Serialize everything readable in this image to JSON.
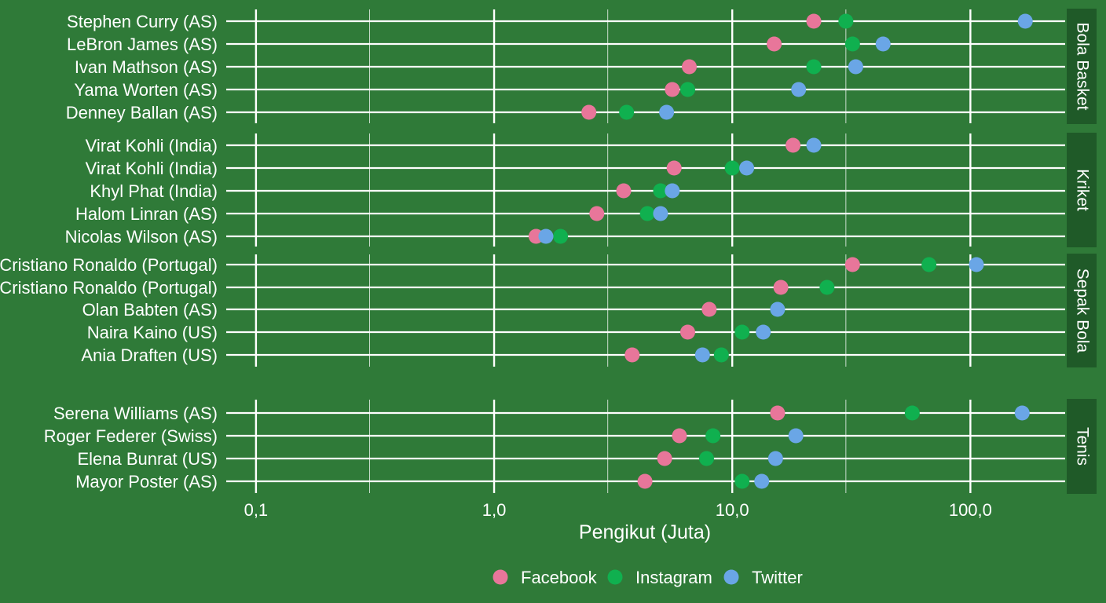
{
  "chart_data": {
    "type": "scatter",
    "x_scale": "log",
    "xlim": [
      0.075,
      250
    ],
    "xlabel": "Pengikut (Juta)",
    "xticks": [
      {
        "value": 0.1,
        "label": "0,1"
      },
      {
        "value": 1,
        "label": "1,0"
      },
      {
        "value": 10,
        "label": "10,0"
      },
      {
        "value": 100,
        "label": "100,0"
      }
    ],
    "minor_grid": [
      0.3,
      3,
      30
    ],
    "grid": true,
    "legend_position": "bottom",
    "series": [
      {
        "key": "fb",
        "name": "Facebook",
        "color": "#e8769a"
      },
      {
        "key": "ig",
        "name": "Instagram",
        "color": "#10b04f"
      },
      {
        "key": "tw",
        "name": "Twitter",
        "color": "#6aa6e6"
      }
    ],
    "panels": [
      {
        "name": "Bola Basket",
        "rows": [
          {
            "label": "Stephen Curry (AS)",
            "fb": 22,
            "ig": 30,
            "tw": 170
          },
          {
            "label": "LeBron James (AS)",
            "fb": 15,
            "ig": 32,
            "tw": 43
          },
          {
            "label": "Ivan Mathson (AS)",
            "fb": 6.6,
            "ig": 22,
            "tw": 33
          },
          {
            "label": "Yama Worten (AS)",
            "fb": 5.6,
            "ig": 6.5,
            "tw": 19
          },
          {
            "label": "Denney Ballan (AS)",
            "fb": 2.5,
            "ig": 3.6,
            "tw": 5.3
          }
        ]
      },
      {
        "name": "Kriket",
        "rows": [
          {
            "label": "Virat Kohli (India)",
            "fb": 18,
            "ig": null,
            "tw": 22
          },
          {
            "label": "Virat  Kohli (India)",
            "fb": 5.7,
            "ig": 10,
            "tw": 11.5
          },
          {
            "label": "Khyl Phat (India)",
            "fb": 3.5,
            "ig": 5,
            "tw": 5.6
          },
          {
            "label": "Halom Linran (AS)",
            "fb": 2.7,
            "ig": 4.4,
            "tw": 5
          },
          {
            "label": "Nicolas Wilson (AS)",
            "fb": 1.5,
            "ig": 1.9,
            "tw": 1.65
          }
        ]
      },
      {
        "name": "Sepak Bola",
        "rows": [
          {
            "label": "Cristiano Ronaldo (Portugal)",
            "fb": 32,
            "ig": 67,
            "tw": 106
          },
          {
            "label": "Cristiano Ronaldo (Portugal)",
            "fb": 16,
            "ig": 25,
            "tw": null
          },
          {
            "label": "Olan Babten (AS)",
            "fb": 8,
            "ig": 15.5,
            "tw": 15.5
          },
          {
            "label": "Naira Kaino (US)",
            "fb": 6.5,
            "ig": 11,
            "tw": 13.5
          },
          {
            "label": "Ania Draften (US)",
            "fb": 3.8,
            "ig": 9,
            "tw": 7.5
          }
        ]
      },
      {
        "name": "Tenis",
        "rows": [
          {
            "label": "Serena Williams (AS)",
            "fb": 15.5,
            "ig": 57,
            "tw": 165
          },
          {
            "label": "Roger Federer (Swiss)",
            "fb": 6,
            "ig": 8.3,
            "tw": 18.5
          },
          {
            "label": "Elena Bunrat (US)",
            "fb": 5.2,
            "ig": 7.8,
            "tw": 15.2
          },
          {
            "label": "Mayor Poster (AS)",
            "fb": 4.3,
            "ig": 11,
            "tw": 13.3
          }
        ]
      }
    ]
  }
}
